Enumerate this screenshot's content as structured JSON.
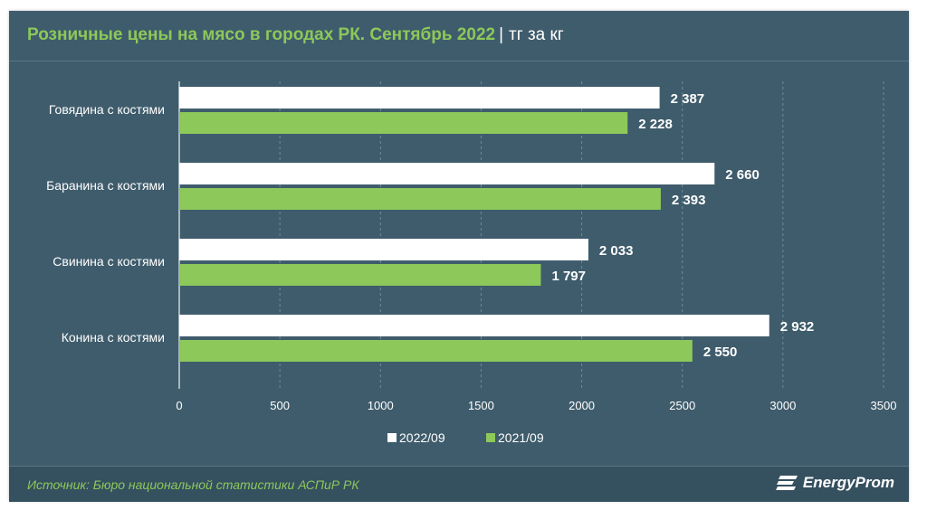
{
  "header": {
    "title": "Розничные цены на мясо в городах РК. Сентябрь 2022",
    "separator": "|",
    "unit": "тг за кг"
  },
  "footer": {
    "source": "Источник: Бюро национальной статистики АСПиР РК",
    "logo_text": "EnergyProm"
  },
  "colors": {
    "background": "#3f5c6c",
    "series_2022": "#ffffff",
    "series_2021": "#8cc85a",
    "text": "#ffffff",
    "accent": "#8cc85a"
  },
  "chart_data": {
    "type": "bar",
    "orientation": "horizontal",
    "categories": [
      "Говядина с костями",
      "Баранина с костями",
      "Свинина с костями",
      "Конина с костями"
    ],
    "series": [
      {
        "name": "2022/09",
        "values": [
          2387,
          2660,
          2033,
          2932
        ],
        "labels": [
          "2 387",
          "2 660",
          "2 033",
          "2 932"
        ],
        "color": "#ffffff"
      },
      {
        "name": "2021/09",
        "values": [
          2228,
          2393,
          1797,
          2550
        ],
        "labels": [
          "2 228",
          "2 393",
          "1 797",
          "2 550"
        ],
        "color": "#8cc85a"
      }
    ],
    "xlim": [
      0,
      3500
    ],
    "x_ticks": [
      0,
      500,
      1000,
      1500,
      2000,
      2500,
      3000,
      3500
    ],
    "grid": "vertical dashed",
    "legend_position": "bottom-center"
  }
}
